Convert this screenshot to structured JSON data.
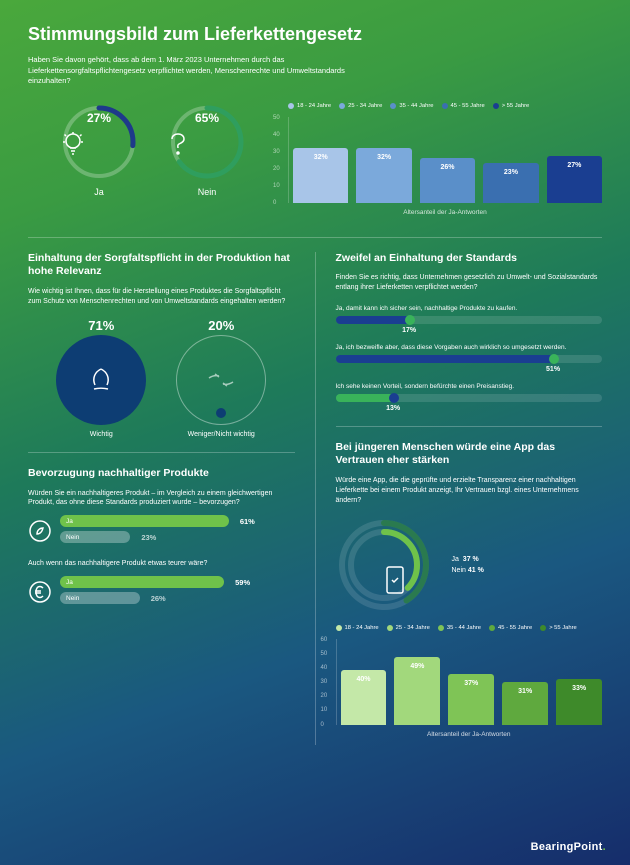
{
  "title": "Stimmungsbild zum Lieferkettengesetz",
  "intro": "Haben Sie davon gehört, dass ab dem 1. März 2023 Unternehmen durch das Lieferkettensorgfaltspflichtengesetz verpflichtet werden, Menschenrechte und Umweltstandards einzuhalten?",
  "awareness": {
    "yes": {
      "pct": "27%",
      "label": "Ja",
      "ring_color": "#1e3a8a",
      "track_color": "rgba(255,255,255,0.25)"
    },
    "no": {
      "pct": "65%",
      "label": "Nein",
      "ring_color": "#2f9e5e",
      "track_color": "rgba(255,255,255,0.25)"
    }
  },
  "age_chart_top": {
    "type": "bar",
    "legend": [
      {
        "label": "18 - 24 Jahre",
        "color": "#a8c5e8"
      },
      {
        "label": "25 - 34 Jahre",
        "color": "#7ba9db"
      },
      {
        "label": "35 - 44 Jahre",
        "color": "#5a8fc9"
      },
      {
        "label": "45 - 55 Jahre",
        "color": "#3a6fb0"
      },
      {
        "label": "> 55 Jahre",
        "color": "#1a3e91"
      }
    ],
    "values": [
      "32%",
      "32%",
      "26%",
      "23%",
      "27%"
    ],
    "heights": [
      55,
      55,
      45,
      40,
      47
    ],
    "yticks": [
      "0",
      "10",
      "20",
      "30",
      "40",
      "50"
    ],
    "caption": "Altersanteil der Ja-Antworten"
  },
  "relevance": {
    "title": "Einhaltung der Sorgfaltspflicht in der Produktion hat hohe Relevanz",
    "sub": "Wie wichtig ist Ihnen, dass für die Herstellung eines Produktes die Sorgfaltspflicht zum Schutz von Menschenrechten und von Umweltstandards eingehalten werden?",
    "important": {
      "pct": "71%",
      "label": "Wichtig"
    },
    "unimportant": {
      "pct": "20%",
      "label": "Weniger/Nicht wichtig"
    }
  },
  "doubt": {
    "title": "Zweifel an Einhaltung der Standards",
    "sub": "Finden Sie es richtig, dass Unternehmen gesetzlich zu Umwelt- und Sozialstandards entlang ihrer Lieferketten verpflichtet werden?",
    "bars": [
      {
        "label": "Ja, damit kann ich sicher sein, nachhaltige Produkte zu kaufen.",
        "pct": "17%",
        "width": 28,
        "color": "#1a3e91",
        "knob": "#39b35a"
      },
      {
        "label": "Ja, ich bezweifle aber, dass diese Vorgaben auch wirklich so umgesetzt werden.",
        "pct": "51%",
        "width": 82,
        "color": "#1a3e91",
        "knob": "#39b35a"
      },
      {
        "label": "Ich sehe keinen Vorteil, sondern befürchte einen Preisanstieg.",
        "pct": "13%",
        "width": 22,
        "color": "#39b35a",
        "knob": "#1a3e91"
      }
    ]
  },
  "preference": {
    "title": "Bevorzugung nachhaltiger Produkte",
    "q1": "Würden Sie ein nachhaltigeres Produkt – im Vergleich zu einem gleichwertigen Produkt, das ohne diese Standards produziert wurde – bevorzugen?",
    "q1_yes": {
      "label": "Ja",
      "pct": "61%",
      "width": 72,
      "color": "#6fc24a"
    },
    "q1_no": {
      "label": "Nein",
      "pct": "23%",
      "width": 30,
      "color": "rgba(255,255,255,0.3)"
    },
    "q2": "Auch wenn das nachhaltigere Produkt etwas teurer wäre?",
    "q2_yes": {
      "label": "Ja",
      "pct": "59%",
      "width": 70,
      "color": "#6fc24a"
    },
    "q2_no": {
      "label": "Nein",
      "pct": "26%",
      "width": 34,
      "color": "rgba(255,255,255,0.3)"
    }
  },
  "app": {
    "title": "Bei jüngeren Menschen würde eine App das Vertrauen eher stärken",
    "sub": "Würde eine App, die die geprüfte und erzielte Transparenz einer nachhaltigen Lieferkette bei einem Produkt anzeigt, Ihr Vertrauen bzgl. eines Unternehmens ändern?",
    "yes": {
      "label": "Ja",
      "pct": "37 %",
      "color": "#6fc24a"
    },
    "no": {
      "label": "Nein",
      "pct": "41 %",
      "color": "#2a7a4f"
    }
  },
  "age_chart_bottom": {
    "type": "bar",
    "legend": [
      {
        "label": "18 - 24 Jahre",
        "color": "#c4e8a8"
      },
      {
        "label": "25 - 34 Jahre",
        "color": "#a2d87c"
      },
      {
        "label": "35 - 44 Jahre",
        "color": "#7fc456"
      },
      {
        "label": "45 - 55 Jahre",
        "color": "#5fa93e"
      },
      {
        "label": "> 55 Jahre",
        "color": "#3e8a2a"
      }
    ],
    "values": [
      "40%",
      "49%",
      "37%",
      "31%",
      "33%"
    ],
    "heights": [
      55,
      68,
      51,
      43,
      46
    ],
    "yticks": [
      "0",
      "10",
      "20",
      "30",
      "40",
      "50",
      "60"
    ],
    "caption": "Altersanteil der Ja-Antworten"
  },
  "logo": "BearingPoint"
}
